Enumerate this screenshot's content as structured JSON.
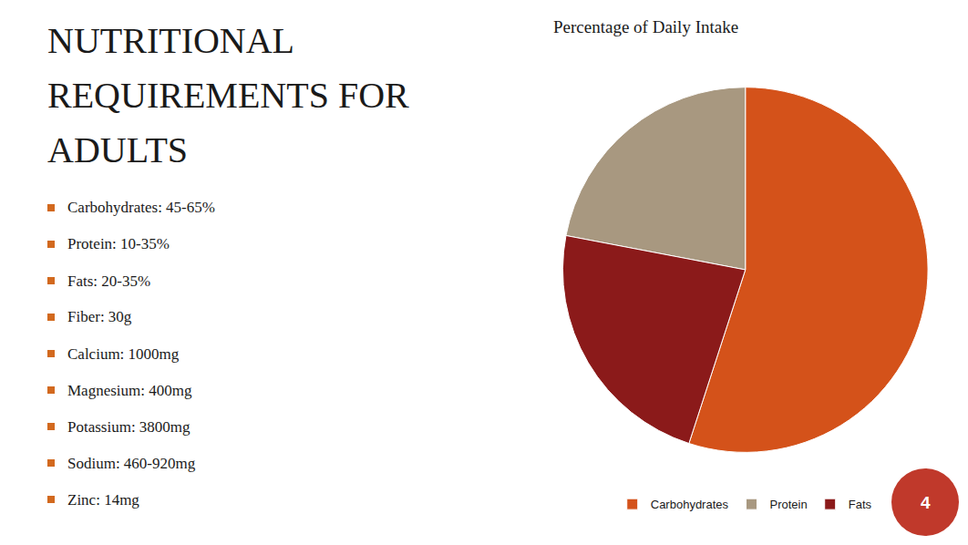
{
  "chart_data": {
    "type": "pie",
    "title": [
      "NUTRITIONAL",
      "REQUIREMENTS FOR",
      "ADULTS"
    ],
    "subtitle": "Percentage of Daily Intake",
    "categories": [
      "Carbohydrates",
      "Protein",
      "Fats"
    ],
    "values": [
      55,
      22,
      23
    ],
    "colors": [
      "#D4521A",
      "#A89880",
      "#8B1A1A"
    ],
    "legend": "bottom",
    "annotations": [
      "Carbohydrates: 45-65%",
      "Protein: 10-35%",
      "Fats: 20-35%",
      "Fiber: 30g",
      "Calcium: 1000mg",
      "Magnesium: 400mg",
      "Potassium: 3800mg",
      "Sodium: 460-920mg",
      "Zinc: 14mg",
      "4"
    ]
  }
}
